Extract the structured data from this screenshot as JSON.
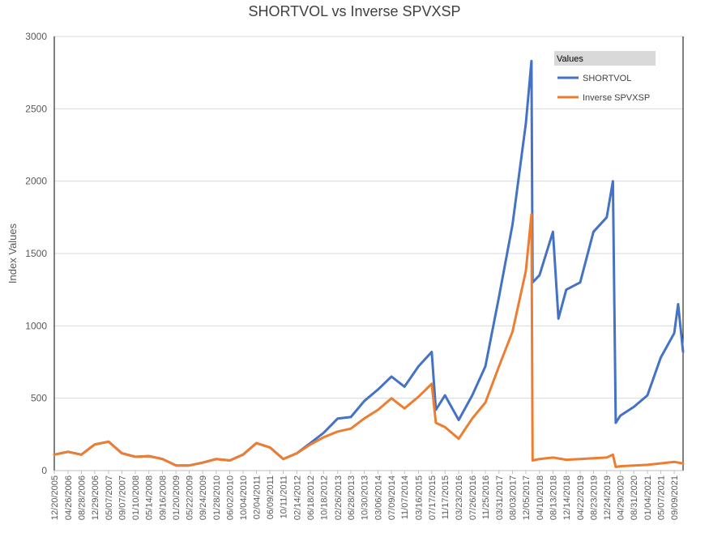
{
  "chart_data": {
    "type": "line",
    "title": "SHORTVOL vs Inverse SPVXSP",
    "xlabel": "",
    "ylabel": "Index Values",
    "ylim": [
      0,
      3000
    ],
    "yticks": [
      "0",
      "500",
      "1000",
      "1500",
      "2000",
      "2500",
      "3000"
    ],
    "grid": "horizontal",
    "legend": {
      "title": "Values",
      "placement": "top-right"
    },
    "x_tick_labels": [
      "12/20/2005",
      "04/26/2006",
      "08/28/2006",
      "12/29/2006",
      "05/07/2007",
      "09/07/2007",
      "01/10/2008",
      "05/14/2008",
      "09/16/2008",
      "01/20/2009",
      "05/22/2009",
      "09/24/2009",
      "01/28/2010",
      "06/02/2010",
      "10/04/2010",
      "02/04/2011",
      "06/09/2011",
      "10/11/2011",
      "02/14/2012",
      "06/18/2012",
      "10/18/2012",
      "02/26/2013",
      "06/28/2013",
      "10/30/2013",
      "03/06/2014",
      "07/09/2014",
      "11/07/2014",
      "03/16/2015",
      "07/17/2015",
      "11/17/2015",
      "03/23/2016",
      "07/26/2016",
      "11/25/2016",
      "03/31/2017",
      "08/03/2017",
      "12/05/2017",
      "04/10/2018",
      "08/13/2018",
      "12/14/2018",
      "04/22/2019",
      "08/23/2019",
      "12/24/2019",
      "04/29/2020",
      "08/31/2020",
      "01/04/2021",
      "05/07/2021",
      "09/09/2021"
    ],
    "series": [
      {
        "name": "SHORTVOL",
        "color": "#4472C4",
        "x": [
          "12/20/2005",
          "04/26/2006",
          "08/28/2006",
          "12/29/2006",
          "05/07/2007",
          "09/07/2007",
          "01/10/2008",
          "05/14/2008",
          "09/16/2008",
          "01/20/2009",
          "05/22/2009",
          "09/24/2009",
          "01/28/2010",
          "06/02/2010",
          "10/04/2010",
          "02/04/2011",
          "06/09/2011",
          "10/11/2011",
          "02/14/2012",
          "06/18/2012",
          "10/18/2012",
          "02/26/2013",
          "06/28/2013",
          "10/30/2013",
          "03/06/2014",
          "07/09/2014",
          "11/07/2014",
          "03/16/2015",
          "07/17/2015",
          "08/24/2015",
          "11/17/2015",
          "03/23/2016",
          "07/26/2016",
          "11/25/2016",
          "03/31/2017",
          "08/03/2017",
          "12/05/2017",
          "01/26/2018",
          "02/05/2018",
          "04/10/2018",
          "08/13/2018",
          "10/03/2018",
          "12/14/2018",
          "04/22/2019",
          "08/23/2019",
          "12/24/2019",
          "02/19/2020",
          "03/16/2020",
          "04/29/2020",
          "08/31/2020",
          "01/04/2021",
          "05/07/2021",
          "09/09/2021",
          "10/15/2021",
          "11/30/2021"
        ],
        "values": [
          110,
          130,
          110,
          180,
          200,
          120,
          95,
          100,
          80,
          35,
          35,
          55,
          80,
          70,
          110,
          190,
          160,
          80,
          120,
          190,
          260,
          360,
          370,
          480,
          560,
          650,
          580,
          720,
          820,
          420,
          520,
          350,
          520,
          720,
          1200,
          1700,
          2400,
          2830,
          1300,
          1350,
          1650,
          1050,
          1250,
          1300,
          1650,
          1750,
          2000,
          330,
          380,
          440,
          520,
          780,
          950,
          1150,
          820
        ]
      },
      {
        "name": "Inverse SPVXSP",
        "color": "#ED7D31",
        "x": [
          "12/20/2005",
          "04/26/2006",
          "08/28/2006",
          "12/29/2006",
          "05/07/2007",
          "09/07/2007",
          "01/10/2008",
          "05/14/2008",
          "09/16/2008",
          "01/20/2009",
          "05/22/2009",
          "09/24/2009",
          "01/28/2010",
          "06/02/2010",
          "10/04/2010",
          "02/04/2011",
          "06/09/2011",
          "10/11/2011",
          "02/14/2012",
          "06/18/2012",
          "10/18/2012",
          "02/26/2013",
          "06/28/2013",
          "10/30/2013",
          "03/06/2014",
          "07/09/2014",
          "11/07/2014",
          "03/16/2015",
          "07/17/2015",
          "08/24/2015",
          "11/17/2015",
          "03/23/2016",
          "07/26/2016",
          "11/25/2016",
          "03/31/2017",
          "08/03/2017",
          "12/05/2017",
          "01/26/2018",
          "02/05/2018",
          "04/10/2018",
          "08/13/2018",
          "12/14/2018",
          "04/22/2019",
          "08/23/2019",
          "12/24/2019",
          "02/19/2020",
          "03/16/2020",
          "04/29/2020",
          "08/31/2020",
          "01/04/2021",
          "05/07/2021",
          "09/09/2021",
          "11/30/2021"
        ],
        "values": [
          110,
          130,
          110,
          180,
          200,
          120,
          95,
          100,
          80,
          35,
          35,
          55,
          80,
          70,
          110,
          190,
          160,
          80,
          120,
          180,
          230,
          270,
          290,
          360,
          420,
          500,
          430,
          510,
          600,
          330,
          300,
          220,
          360,
          470,
          720,
          960,
          1380,
          1770,
          70,
          80,
          90,
          75,
          80,
          85,
          90,
          110,
          25,
          30,
          35,
          40,
          50,
          60,
          50
        ]
      }
    ]
  }
}
